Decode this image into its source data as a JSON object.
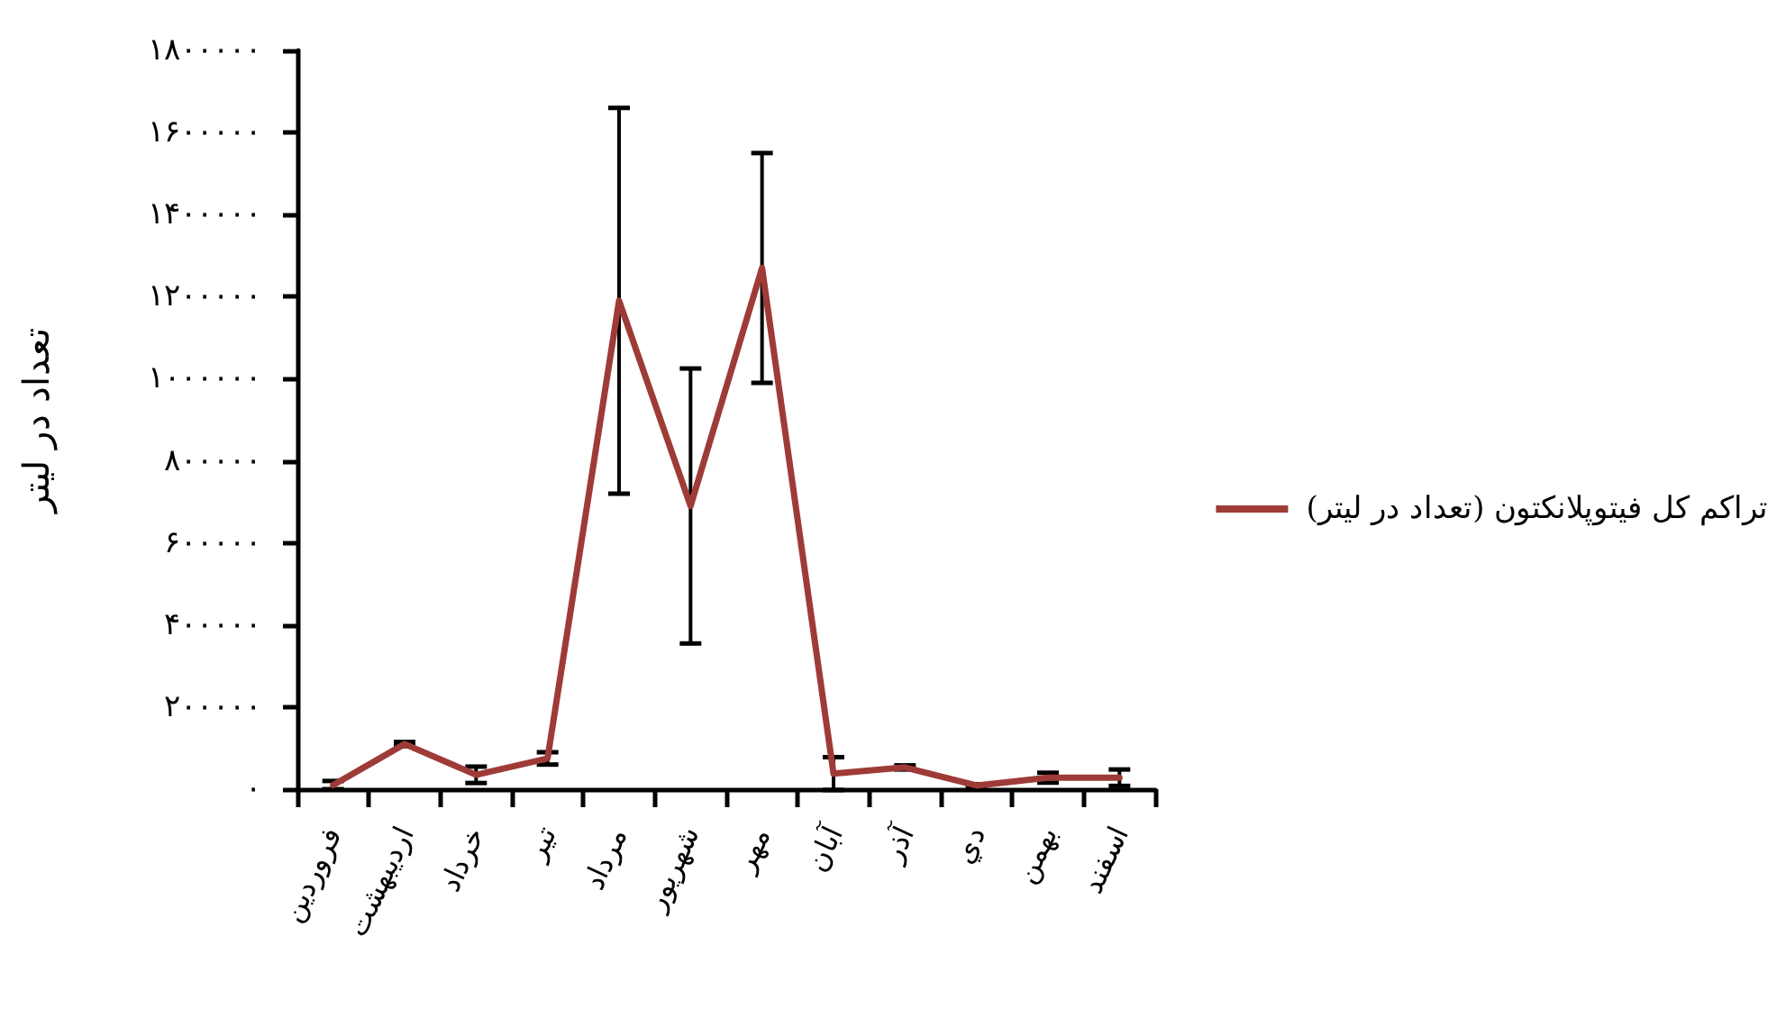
{
  "chart_data": {
    "type": "line",
    "ylabel": "تعداد در لیتر",
    "categories": [
      "فروردین",
      "اردیبهشت",
      "خرداد",
      "تیر",
      "مرداد",
      "شهریور",
      "مهر",
      "آبان",
      "آذر",
      "دي",
      "بهمن",
      "اسفند"
    ],
    "series": [
      {
        "name": "تراکم کل فیتوپلانکتون (تعداد در لیتر)",
        "color": "#9e3b37",
        "values": [
          10000,
          110000,
          35000,
          75000,
          1190000,
          690000,
          1270000,
          38000,
          53000,
          9000,
          28000,
          28000
        ],
        "errors": [
          10000,
          5000,
          20000,
          15000,
          470000,
          335000,
          280000,
          40000,
          5000,
          3000,
          12000,
          20000
        ]
      }
    ],
    "ylim": [
      0,
      1800000
    ],
    "yticks": [
      {
        "value": 0,
        "label": "۰"
      },
      {
        "value": 200000,
        "label": "۲۰۰۰۰۰"
      },
      {
        "value": 400000,
        "label": "۴۰۰۰۰۰"
      },
      {
        "value": 600000,
        "label": "۶۰۰۰۰۰"
      },
      {
        "value": 800000,
        "label": "۸۰۰۰۰۰"
      },
      {
        "value": 1000000,
        "label": "۱۰۰۰۰۰۰"
      },
      {
        "value": 1200000,
        "label": "۱۲۰۰۰۰۰"
      },
      {
        "value": 1400000,
        "label": "۱۴۰۰۰۰۰"
      },
      {
        "value": 1600000,
        "label": "۱۶۰۰۰۰۰"
      },
      {
        "value": 1800000,
        "label": "۱۸۰۰۰۰۰"
      }
    ],
    "grid": false,
    "legend": "right",
    "marker": "none",
    "line_style": "solid"
  }
}
